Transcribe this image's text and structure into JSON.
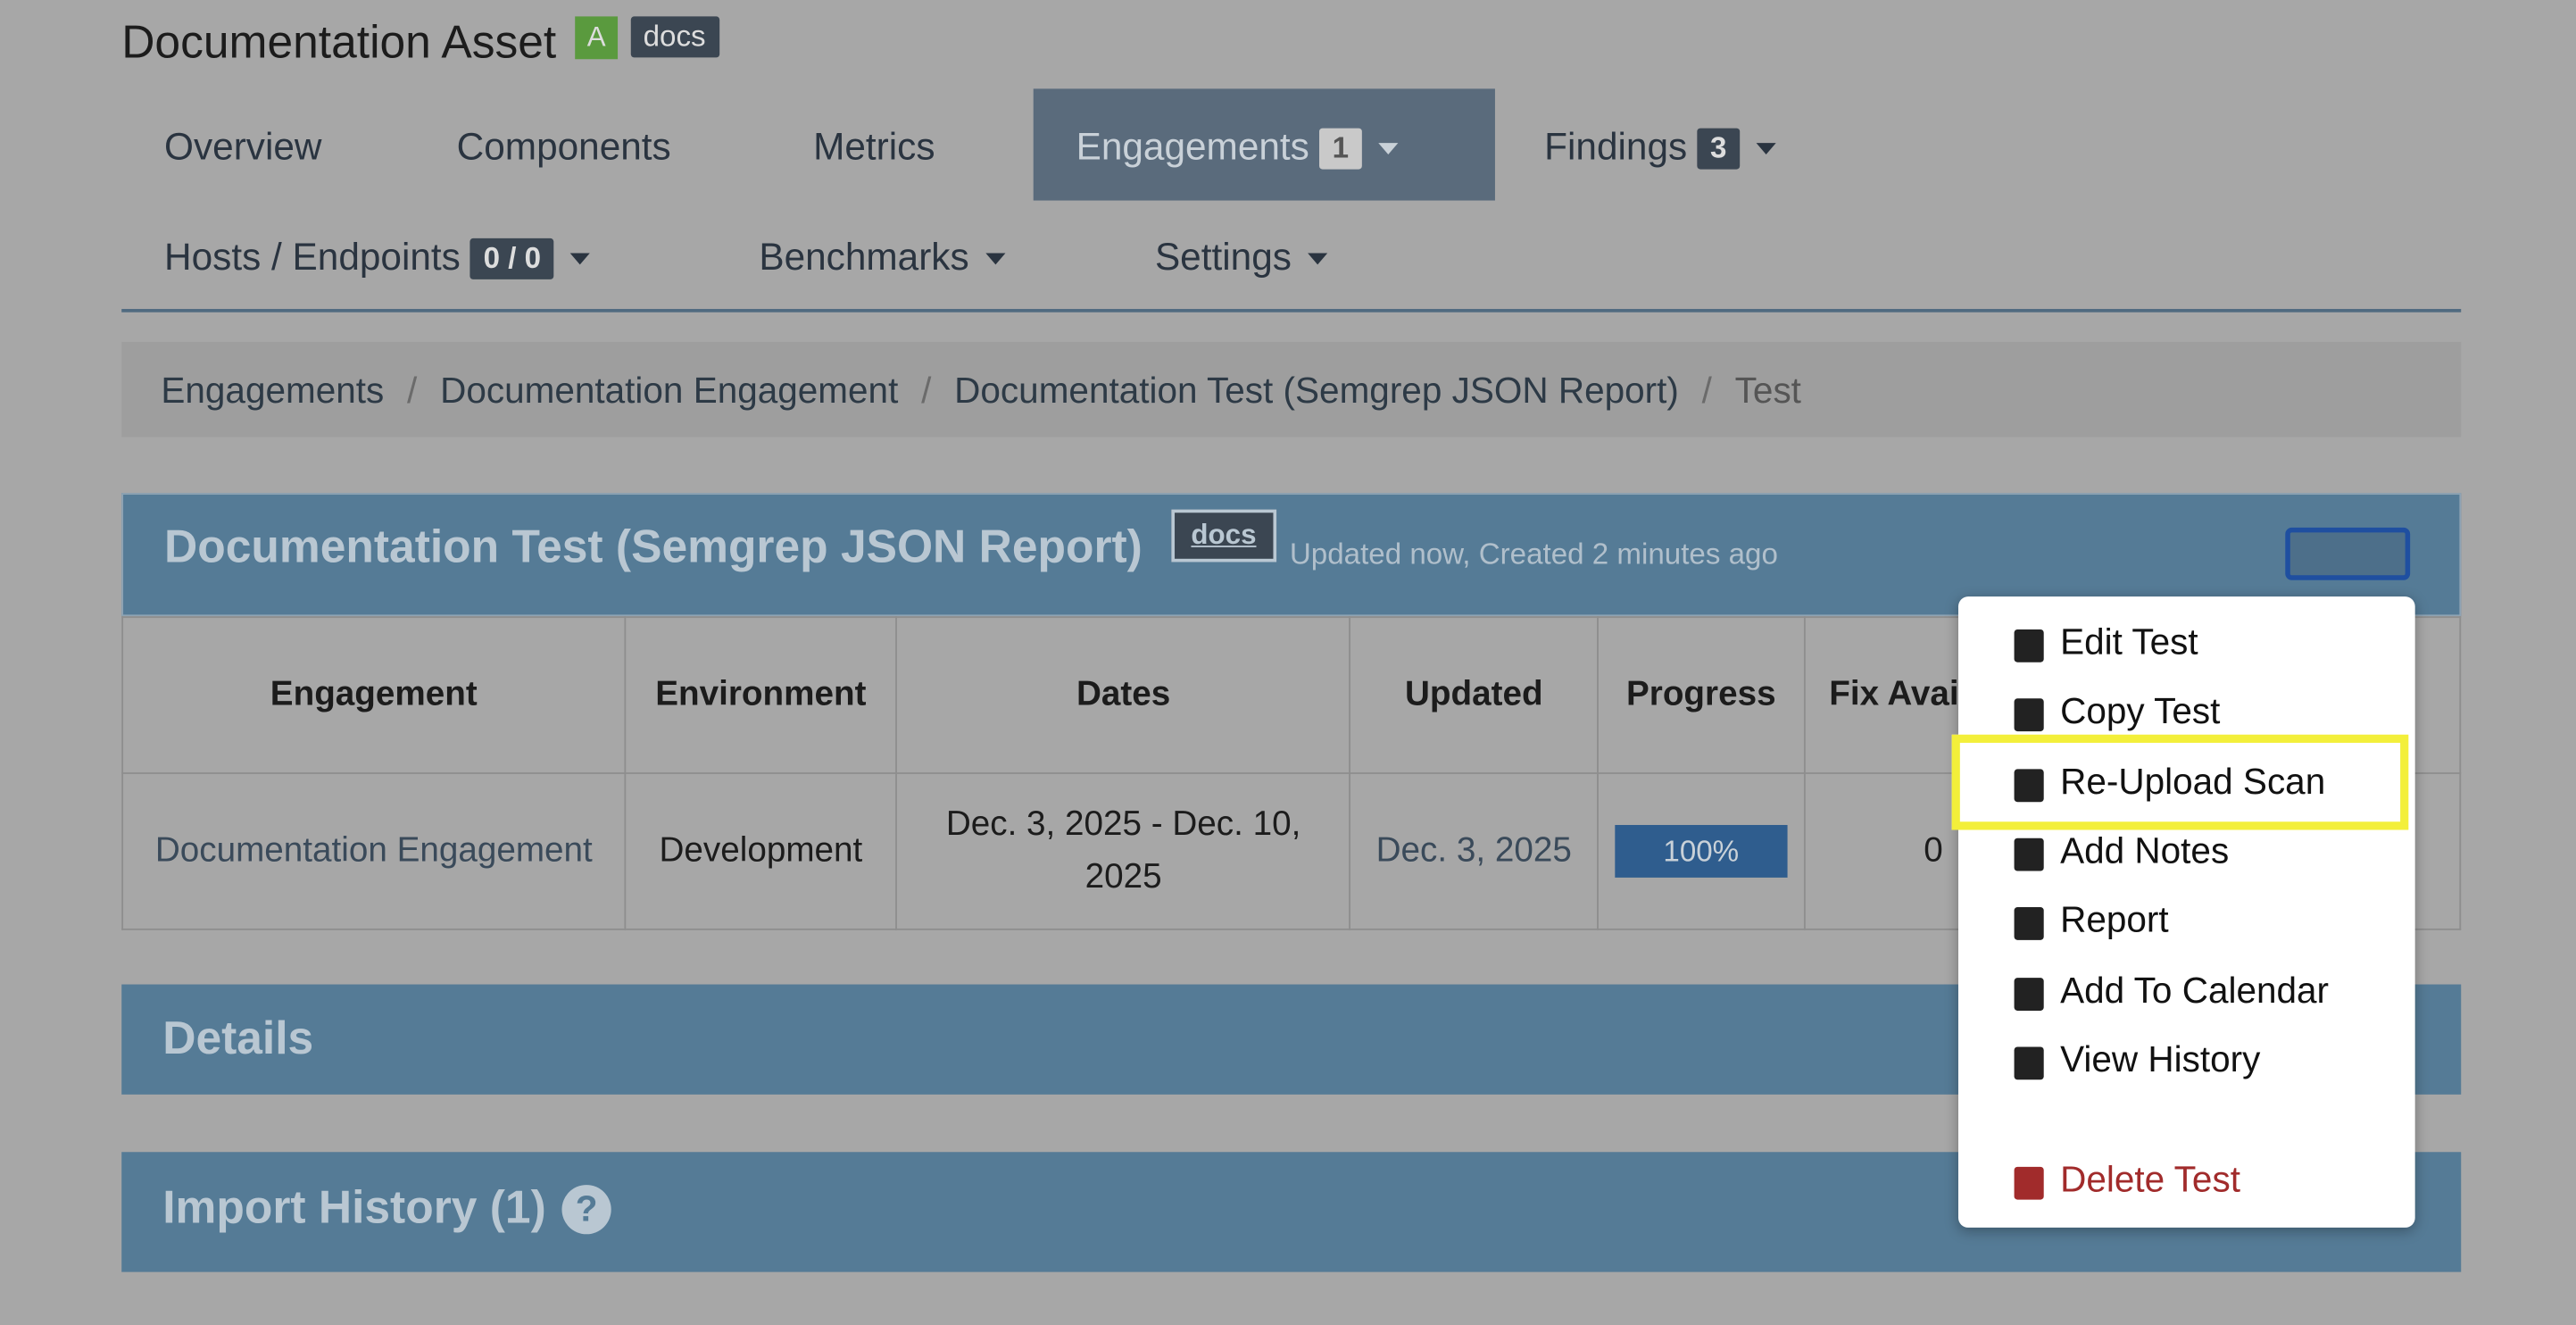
{
  "header": {
    "title": "Documentation Asset",
    "grade": "A",
    "tag": "docs"
  },
  "nav": [
    {
      "label": "Overview"
    },
    {
      "label": "Components"
    },
    {
      "label": "Metrics"
    },
    {
      "label": "Engagements",
      "badge": "1"
    },
    {
      "label": "Findings",
      "badge": "3"
    },
    {
      "label": "Hosts / Endpoints",
      "badge": "0 / 0"
    },
    {
      "label": "Benchmarks"
    },
    {
      "label": "Settings"
    }
  ],
  "breadcrumb": [
    "Engagements",
    "Documentation Engagement",
    "Documentation Test (Semgrep JSON Report)",
    "Test"
  ],
  "panel": {
    "title": "Documentation Test (Semgrep JSON Report)",
    "tag": "docs",
    "meta": "Updated now, Created 2 minutes ago"
  },
  "table": {
    "headers": [
      "Engagement",
      "Environment",
      "Dates",
      "Updated",
      "Progress",
      "Fix Available"
    ],
    "rows": [
      [
        "Documentation Engagement",
        "Development",
        "Dec. 3, 2025 - Dec. 10, 2025",
        "Dec. 3, 2025",
        "100%",
        "0"
      ]
    ]
  },
  "menu": [
    "Edit Test",
    "Copy Test",
    "Re-Upload Scan",
    "Add Notes",
    "Report",
    "Add To Calendar",
    "View History",
    "Delete Test"
  ],
  "sections": {
    "details": "Details",
    "import_history": "Import History (1)",
    "help": "?"
  }
}
